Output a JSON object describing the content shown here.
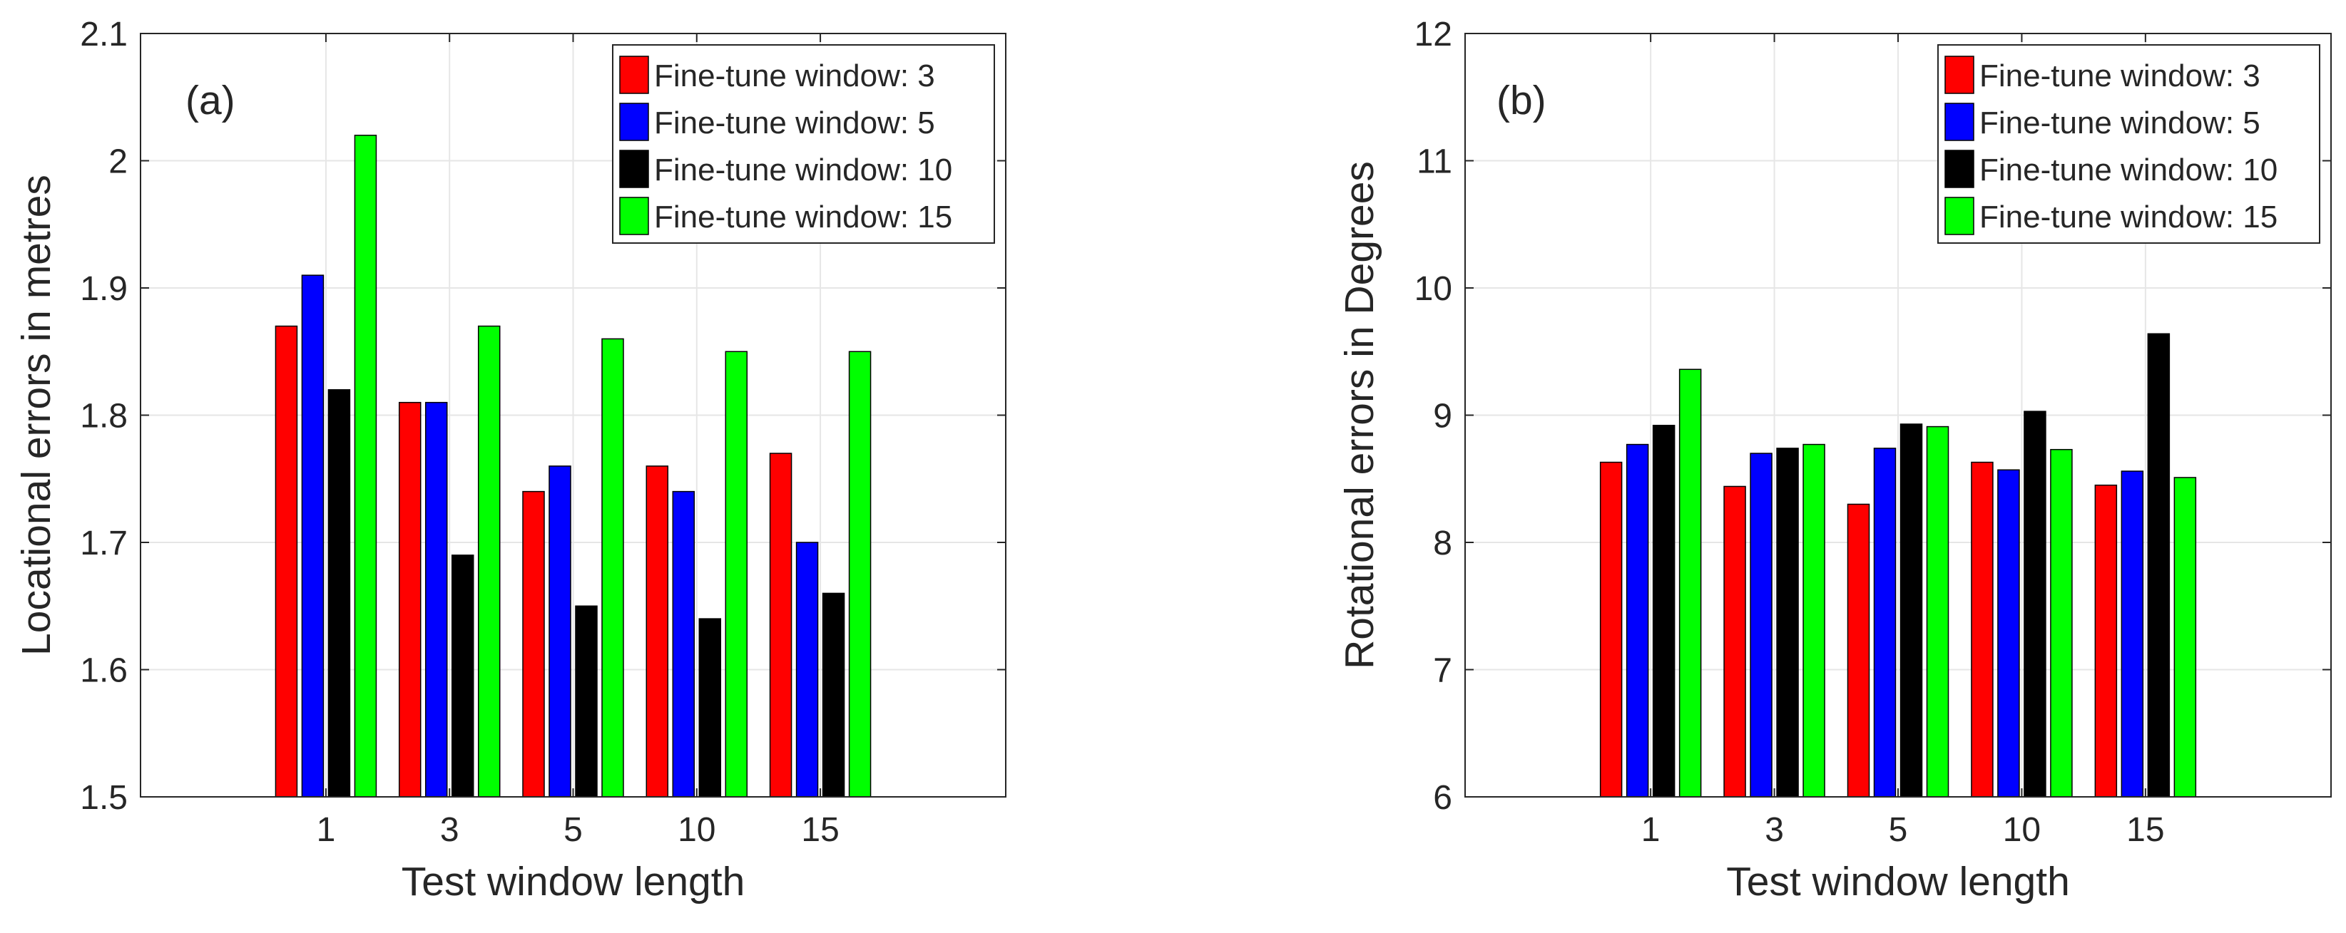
{
  "chart_data": [
    {
      "type": "bar",
      "panel_label": "(a)",
      "categories": [
        "1",
        "3",
        "5",
        "10",
        "15"
      ],
      "xlabel": "Test window length",
      "ylabel": "Locational errors in metres",
      "ylim": [
        1.5,
        2.1
      ],
      "yticks": [
        "1.5",
        "1.6",
        "1.7",
        "1.8",
        "1.9",
        "2",
        "2.1"
      ],
      "grid": true,
      "legend_position": "top-right",
      "series": [
        {
          "name": "Fine-tune window: 3",
          "color": "#ff0000",
          "values": [
            1.87,
            1.81,
            1.74,
            1.76,
            1.77
          ]
        },
        {
          "name": "Fine-tune window: 5",
          "color": "#0000ff",
          "values": [
            1.91,
            1.81,
            1.76,
            1.74,
            1.7
          ]
        },
        {
          "name": "Fine-tune window: 10",
          "color": "#000000",
          "values": [
            1.82,
            1.69,
            1.65,
            1.64,
            1.66
          ]
        },
        {
          "name": "Fine-tune window: 15",
          "color": "#00ff00",
          "values": [
            2.02,
            1.87,
            1.86,
            1.85,
            1.85
          ]
        }
      ]
    },
    {
      "type": "bar",
      "panel_label": "(b)",
      "categories": [
        "1",
        "3",
        "5",
        "10",
        "15"
      ],
      "xlabel": "Test window length",
      "ylabel": "Rotational errors in Degrees",
      "ylim": [
        6,
        12
      ],
      "yticks": [
        "6",
        "7",
        "8",
        "9",
        "10",
        "11",
        "12"
      ],
      "grid": true,
      "legend_position": "top-right",
      "series": [
        {
          "name": "Fine-tune window: 3",
          "color": "#ff0000",
          "values": [
            8.63,
            8.44,
            8.3,
            8.63,
            8.45
          ]
        },
        {
          "name": "Fine-tune window: 5",
          "color": "#0000ff",
          "values": [
            8.77,
            8.7,
            8.74,
            8.57,
            8.56
          ]
        },
        {
          "name": "Fine-tune window: 10",
          "color": "#000000",
          "values": [
            8.92,
            8.74,
            8.93,
            9.03,
            9.64
          ]
        },
        {
          "name": "Fine-tune window: 15",
          "color": "#00ff00",
          "values": [
            9.36,
            8.77,
            8.91,
            8.73,
            8.51
          ]
        }
      ]
    }
  ]
}
